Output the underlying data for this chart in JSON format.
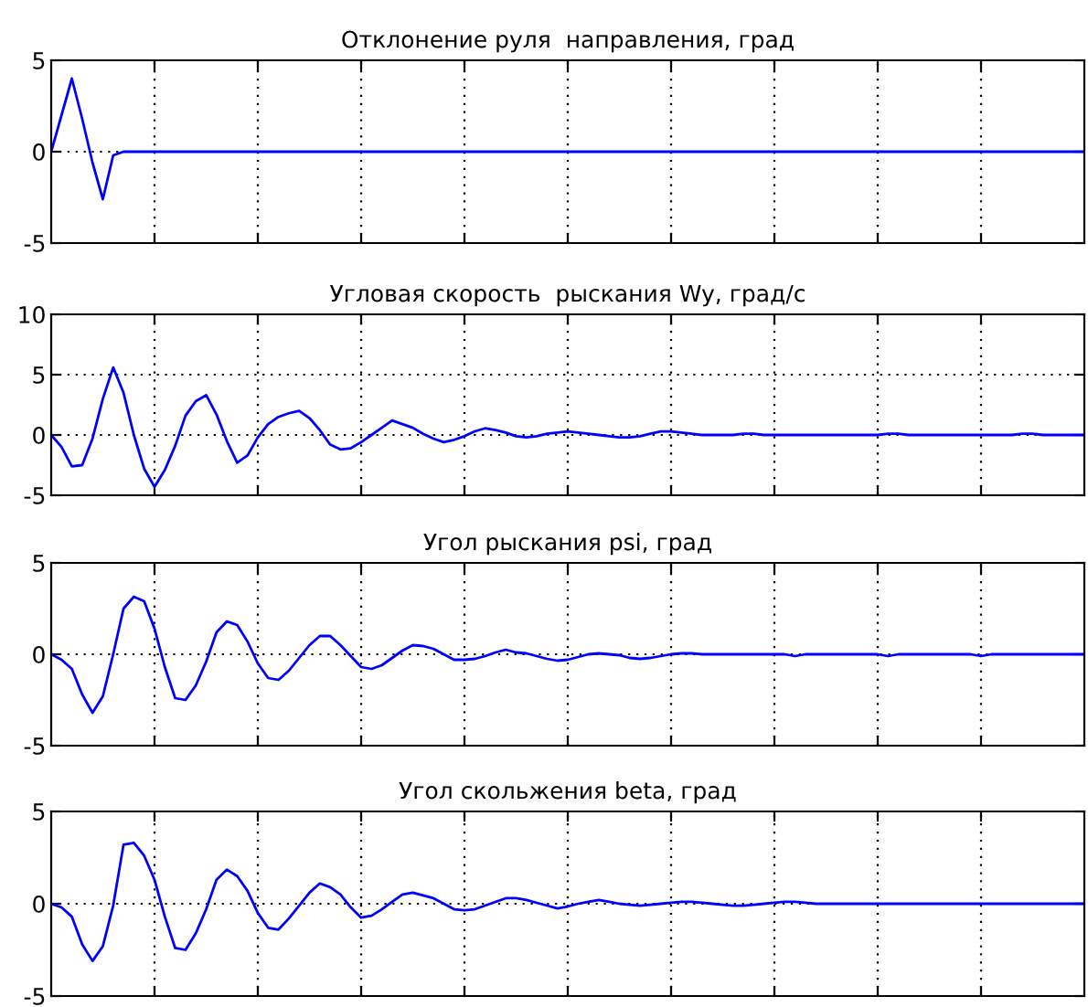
{
  "chart_data": [
    {
      "type": "line",
      "title": "Отклонение руля  направления, град",
      "color": "#0000ff",
      "ylim": [
        -5,
        5
      ],
      "yticks": [
        -5,
        0,
        5
      ],
      "grid": true,
      "tick_labels": "y",
      "categories": [
        null,
        null,
        null,
        null,
        null,
        null,
        null,
        null,
        null,
        null,
        null,
        null,
        null,
        null,
        null,
        null,
        null,
        null,
        null,
        null,
        null,
        null,
        null,
        null,
        null,
        null,
        null,
        null,
        null,
        null,
        null,
        null,
        null,
        null,
        null,
        null,
        null,
        null,
        null,
        null,
        null,
        null,
        null,
        null,
        null,
        null,
        null,
        null,
        null,
        null,
        null,
        null,
        null,
        null,
        null,
        null,
        null,
        null,
        null,
        null,
        null,
        null,
        null,
        null,
        null,
        null,
        null,
        null,
        null,
        null,
        null,
        null,
        null,
        null,
        null,
        null,
        null,
        null,
        null,
        null,
        null,
        null,
        null,
        null,
        null,
        null,
        null,
        null,
        null,
        null,
        null,
        null,
        null,
        null,
        null,
        null,
        null,
        null,
        null,
        null,
        null
      ],
      "values": [
        0,
        2.0,
        4.0,
        1.8,
        -0.6,
        -2.6,
        -0.2,
        0,
        0,
        0,
        0,
        0,
        0,
        0,
        0,
        0,
        0,
        0,
        0,
        0,
        0,
        0,
        0,
        0,
        0,
        0,
        0,
        0,
        0,
        0,
        0,
        0,
        0,
        0,
        0,
        0,
        0,
        0,
        0,
        0,
        0,
        0,
        0,
        0,
        0,
        0,
        0,
        0,
        0,
        0,
        0,
        0,
        0,
        0,
        0,
        0,
        0,
        0,
        0,
        0,
        0,
        0,
        0,
        0,
        0,
        0,
        0,
        0,
        0,
        0,
        0,
        0,
        0,
        0,
        0,
        0,
        0,
        0,
        0,
        0,
        0,
        0,
        0,
        0,
        0,
        0,
        0,
        0,
        0,
        0,
        0,
        0,
        0,
        0,
        0,
        0,
        0,
        0,
        0,
        0,
        0
      ]
    },
    {
      "type": "line",
      "title": "Угловая скорость  рыскания Wy, град/с",
      "color": "#0000ff",
      "ylim": [
        -5,
        10
      ],
      "yticks": [
        -5,
        0,
        5,
        10
      ],
      "grid": true,
      "tick_labels": "y",
      "categories": [
        null,
        null,
        null,
        null,
        null,
        null,
        null,
        null,
        null,
        null,
        null,
        null,
        null,
        null,
        null,
        null,
        null,
        null,
        null,
        null,
        null,
        null,
        null,
        null,
        null,
        null,
        null,
        null,
        null,
        null,
        null,
        null,
        null,
        null,
        null,
        null,
        null,
        null,
        null,
        null,
        null,
        null,
        null,
        null,
        null,
        null,
        null,
        null,
        null,
        null,
        null,
        null,
        null,
        null,
        null,
        null,
        null,
        null,
        null,
        null,
        null,
        null,
        null,
        null,
        null,
        null,
        null,
        null,
        null,
        null,
        null,
        null,
        null,
        null,
        null,
        null,
        null,
        null,
        null,
        null,
        null,
        null,
        null,
        null,
        null,
        null,
        null,
        null,
        null,
        null,
        null,
        null,
        null,
        null,
        null,
        null,
        null,
        null,
        null,
        null,
        null
      ],
      "values": [
        0,
        -1.0,
        -2.6,
        -2.5,
        -0.3,
        3.0,
        5.6,
        3.5,
        0.0,
        -2.8,
        -4.3,
        -2.9,
        -0.9,
        1.6,
        2.8,
        3.3,
        1.7,
        -0.5,
        -2.3,
        -1.7,
        -0.2,
        0.9,
        1.5,
        1.8,
        2.0,
        1.4,
        0.4,
        -0.8,
        -1.2,
        -1.1,
        -0.6,
        0.0,
        0.6,
        1.2,
        0.9,
        0.6,
        0.1,
        -0.3,
        -0.6,
        -0.4,
        -0.1,
        0.3,
        0.55,
        0.4,
        0.2,
        -0.1,
        -0.2,
        -0.1,
        0.1,
        0.2,
        0.3,
        0.2,
        0.1,
        0.0,
        -0.1,
        -0.2,
        -0.2,
        -0.1,
        0.1,
        0.3,
        0.3,
        0.2,
        0.1,
        0,
        0,
        0,
        0,
        0.1,
        0.1,
        0,
        0,
        0,
        0,
        0,
        0,
        0,
        0,
        0,
        0,
        0,
        0,
        0.1,
        0.1,
        0,
        0,
        0,
        0,
        0,
        0,
        0,
        0,
        0,
        0,
        0,
        0.1,
        0.1,
        0,
        0,
        0,
        0,
        0
      ]
    },
    {
      "type": "line",
      "title": "Угол рыскания psi, град",
      "color": "#0000ff",
      "ylim": [
        -5,
        5
      ],
      "yticks": [
        -5,
        0,
        5
      ],
      "grid": true,
      "tick_labels": "y",
      "categories": [
        null,
        null,
        null,
        null,
        null,
        null,
        null,
        null,
        null,
        null,
        null,
        null,
        null,
        null,
        null,
        null,
        null,
        null,
        null,
        null,
        null,
        null,
        null,
        null,
        null,
        null,
        null,
        null,
        null,
        null,
        null,
        null,
        null,
        null,
        null,
        null,
        null,
        null,
        null,
        null,
        null,
        null,
        null,
        null,
        null,
        null,
        null,
        null,
        null,
        null,
        null,
        null,
        null,
        null,
        null,
        null,
        null,
        null,
        null,
        null,
        null,
        null,
        null,
        null,
        null,
        null,
        null,
        null,
        null,
        null,
        null,
        null,
        null,
        null,
        null,
        null,
        null,
        null,
        null,
        null,
        null,
        null,
        null,
        null,
        null,
        null,
        null,
        null,
        null,
        null,
        null,
        null,
        null,
        null,
        null,
        null,
        null,
        null,
        null,
        null,
        null
      ],
      "values": [
        0,
        -0.3,
        -0.8,
        -2.2,
        -3.2,
        -2.3,
        0.0,
        2.5,
        3.15,
        2.9,
        1.4,
        -0.7,
        -2.4,
        -2.5,
        -1.7,
        -0.4,
        1.2,
        1.8,
        1.6,
        0.7,
        -0.5,
        -1.3,
        -1.4,
        -0.9,
        -0.2,
        0.5,
        1.0,
        1.0,
        0.5,
        -0.1,
        -0.7,
        -0.8,
        -0.6,
        -0.2,
        0.2,
        0.5,
        0.45,
        0.3,
        0.0,
        -0.3,
        -0.3,
        -0.25,
        -0.1,
        0.1,
        0.25,
        0.1,
        0.05,
        -0.1,
        -0.25,
        -0.35,
        -0.3,
        -0.15,
        0.0,
        0.05,
        0.0,
        -0.05,
        -0.2,
        -0.25,
        -0.2,
        -0.1,
        0.0,
        0.05,
        0.05,
        0,
        0,
        0,
        0,
        0,
        0,
        0,
        0,
        0,
        -0.1,
        0,
        0,
        0,
        0,
        0,
        0,
        0,
        0,
        -0.1,
        0,
        0,
        0,
        0,
        0,
        0,
        0,
        0,
        -0.1,
        0,
        0,
        0,
        0,
        0,
        0,
        0,
        0,
        0,
        0
      ]
    },
    {
      "type": "line",
      "title": "Угол скольжения beta, град",
      "color": "#0000ff",
      "ylim": [
        -5,
        5
      ],
      "yticks": [
        -5,
        0,
        5
      ],
      "grid": true,
      "tick_labels": "y",
      "categories": [
        null,
        null,
        null,
        null,
        null,
        null,
        null,
        null,
        null,
        null,
        null,
        null,
        null,
        null,
        null,
        null,
        null,
        null,
        null,
        null,
        null,
        null,
        null,
        null,
        null,
        null,
        null,
        null,
        null,
        null,
        null,
        null,
        null,
        null,
        null,
        null,
        null,
        null,
        null,
        null,
        null,
        null,
        null,
        null,
        null,
        null,
        null,
        null,
        null,
        null,
        null,
        null,
        null,
        null,
        null,
        null,
        null,
        null,
        null,
        null,
        null,
        null,
        null,
        null,
        null,
        null,
        null,
        null,
        null,
        null,
        null,
        null,
        null,
        null,
        null,
        null,
        null,
        null,
        null,
        null,
        null,
        null,
        null,
        null,
        null,
        null,
        null,
        null,
        null,
        null,
        null,
        null,
        null,
        null,
        null,
        null,
        null,
        null,
        null,
        null,
        null
      ],
      "values": [
        0,
        -0.2,
        -0.7,
        -2.2,
        -3.1,
        -2.3,
        -0.1,
        3.2,
        3.3,
        2.6,
        1.3,
        -0.7,
        -2.4,
        -2.5,
        -1.6,
        -0.3,
        1.3,
        1.85,
        1.5,
        0.7,
        -0.5,
        -1.3,
        -1.4,
        -0.8,
        -0.1,
        0.6,
        1.1,
        0.9,
        0.5,
        -0.2,
        -0.75,
        -0.65,
        -0.3,
        0.1,
        0.5,
        0.6,
        0.45,
        0.3,
        0.0,
        -0.3,
        -0.35,
        -0.3,
        -0.1,
        0.1,
        0.3,
        0.3,
        0.2,
        0.05,
        -0.1,
        -0.25,
        -0.15,
        0.0,
        0.1,
        0.2,
        0.1,
        0.0,
        -0.05,
        -0.1,
        -0.05,
        0.0,
        0.05,
        0.1,
        0.1,
        0.05,
        0.0,
        -0.05,
        -0.1,
        -0.1,
        -0.05,
        0.0,
        0.05,
        0.1,
        0.1,
        0.05,
        0,
        0,
        0,
        0,
        0,
        0,
        0,
        0,
        0,
        0,
        0,
        0,
        0,
        0,
        0,
        0,
        0,
        0,
        0,
        0,
        0,
        0,
        0,
        0,
        0,
        0,
        0
      ]
    }
  ]
}
